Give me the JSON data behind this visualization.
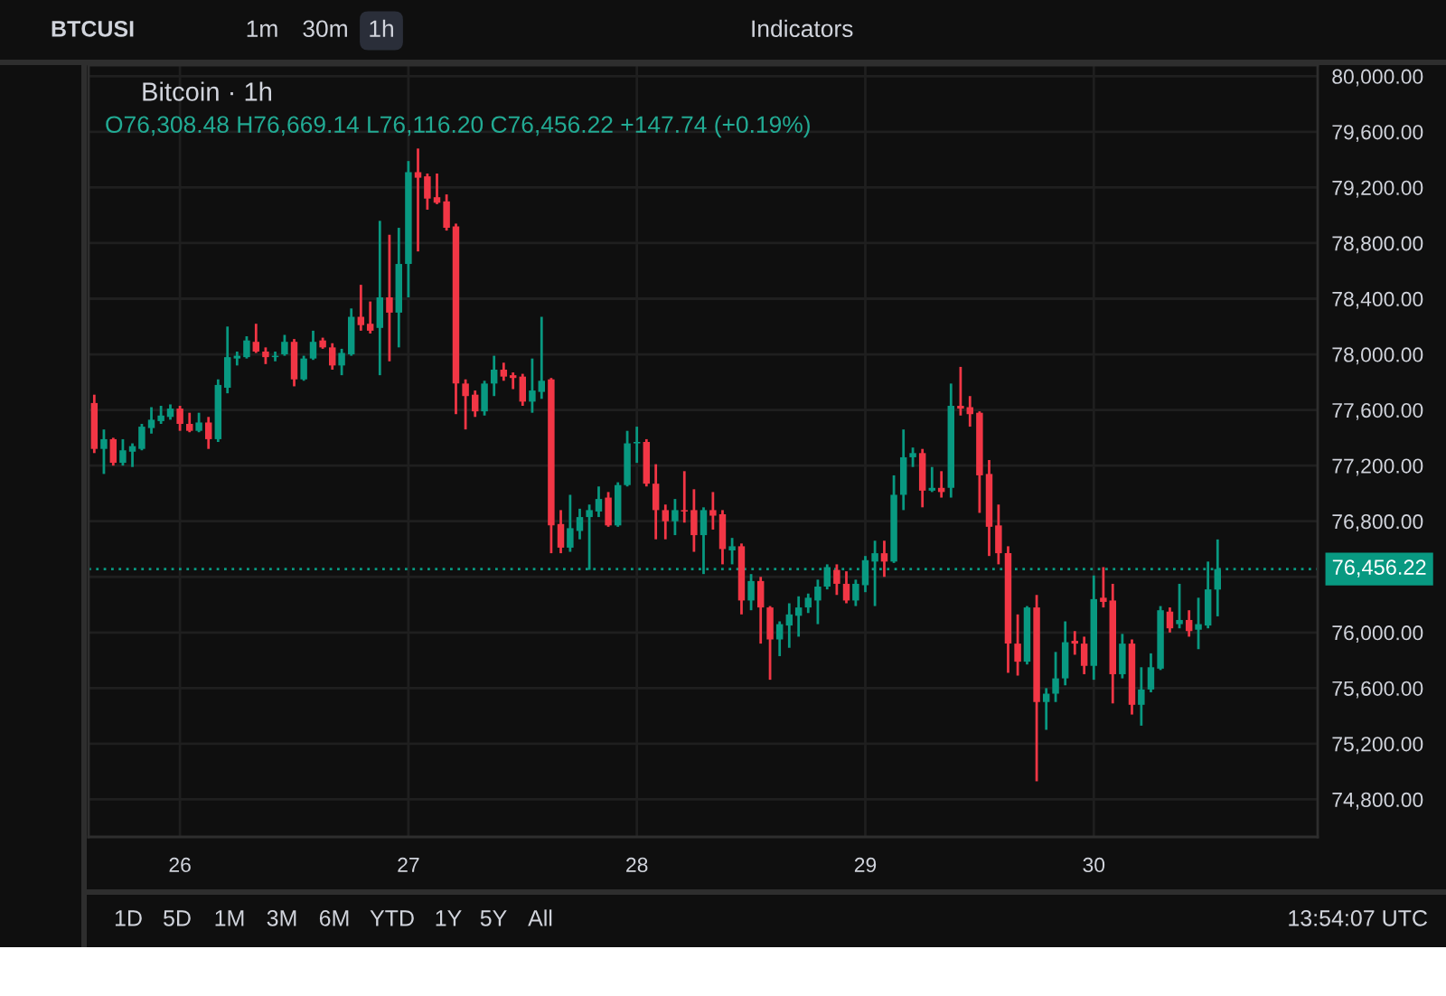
{
  "chart_data": {
    "type": "candlestick",
    "title": "Bitcoin · 1h",
    "subtitle": "O76,308.48 H76,669.14 L76,116.20 C76,456.22 +147.74 (+0.19%)",
    "annotations": [
      "BTCUSI",
      "1m",
      "30m",
      "1h",
      "Indicators",
      "1D",
      "5D",
      "1M",
      "3M",
      "6M",
      "YTD",
      "1Y",
      "5Y",
      "All",
      "13:54:07 UTC"
    ],
    "x": [
      25.625,
      25.667,
      25.708,
      25.75,
      25.792,
      25.833,
      25.875,
      25.917,
      25.958,
      26,
      26.042,
      26.083,
      26.125,
      26.167,
      26.208,
      26.25,
      26.292,
      26.333,
      26.375,
      26.417,
      26.458,
      26.5,
      26.542,
      26.583,
      26.625,
      26.667,
      26.708,
      26.75,
      26.792,
      26.833,
      26.875,
      26.917,
      26.958,
      27,
      27.042,
      27.083,
      27.125,
      27.167,
      27.208,
      27.25,
      27.292,
      27.333,
      27.375,
      27.417,
      27.458,
      27.5,
      27.542,
      27.583,
      27.625,
      27.667,
      27.708,
      27.75,
      27.792,
      27.833,
      27.875,
      27.917,
      27.958,
      28,
      28.042,
      28.083,
      28.125,
      28.167,
      28.208,
      28.25,
      28.292,
      28.333,
      28.375,
      28.417,
      28.458,
      28.5,
      28.542,
      28.583,
      28.625,
      28.667,
      28.708,
      28.75,
      28.792,
      28.833,
      28.875,
      28.917,
      28.958,
      29,
      29.042,
      29.083,
      29.125,
      29.167,
      29.208,
      29.25,
      29.292,
      29.333,
      29.375,
      29.417,
      29.458,
      29.5,
      29.542,
      29.583,
      29.625,
      29.667,
      29.708,
      29.75,
      29.792,
      29.833,
      29.875,
      29.917,
      29.958,
      30,
      30.042,
      30.083,
      30.125,
      30.167,
      30.208,
      30.25,
      30.292,
      30.333,
      30.375,
      30.417,
      30.458,
      30.5,
      30.542
    ],
    "ohlc": [
      [
        77650,
        77710,
        77290,
        77320
      ],
      [
        77320,
        77460,
        77140,
        77390
      ],
      [
        77390,
        77400,
        77200,
        77220
      ],
      [
        77220,
        77390,
        77200,
        77310
      ],
      [
        77300,
        77360,
        77190,
        77340
      ],
      [
        77320,
        77500,
        77310,
        77480
      ],
      [
        77470,
        77620,
        77430,
        77530
      ],
      [
        77520,
        77630,
        77500,
        77560
      ],
      [
        77550,
        77640,
        77530,
        77610
      ],
      [
        77610,
        77630,
        77450,
        77500
      ],
      [
        77500,
        77580,
        77440,
        77450
      ],
      [
        77450,
        77580,
        77440,
        77510
      ],
      [
        77510,
        77550,
        77320,
        77390
      ],
      [
        77390,
        77820,
        77370,
        77780
      ],
      [
        77760,
        78200,
        77720,
        77980
      ],
      [
        77970,
        78020,
        77920,
        77990
      ],
      [
        77980,
        78130,
        77970,
        78100
      ],
      [
        78090,
        78220,
        78010,
        78020
      ],
      [
        78020,
        78050,
        77930,
        77980
      ],
      [
        77980,
        78020,
        77950,
        77990
      ],
      [
        78000,
        78140,
        77990,
        78090
      ],
      [
        78090,
        78110,
        77770,
        77820
      ],
      [
        77820,
        77990,
        77810,
        77970
      ],
      [
        77970,
        78170,
        77960,
        78090
      ],
      [
        78100,
        78120,
        78040,
        78050
      ],
      [
        78050,
        78080,
        77890,
        77920
      ],
      [
        77920,
        78040,
        77850,
        78010
      ],
      [
        78000,
        78330,
        77990,
        78270
      ],
      [
        78270,
        78500,
        78170,
        78210
      ],
      [
        78220,
        78380,
        78150,
        78170
      ],
      [
        78190,
        78960,
        77850,
        78410
      ],
      [
        78410,
        78860,
        77950,
        78300
      ],
      [
        78300,
        78910,
        78050,
        78650
      ],
      [
        78650,
        79390,
        78410,
        79310
      ],
      [
        79310,
        79480,
        78740,
        79270
      ],
      [
        79280,
        79300,
        79040,
        79120
      ],
      [
        79130,
        79300,
        79080,
        79090
      ],
      [
        79100,
        79150,
        78890,
        78910
      ],
      [
        78920,
        78940,
        77570,
        77790
      ],
      [
        77790,
        77820,
        77460,
        77700
      ],
      [
        77710,
        77740,
        77550,
        77590
      ],
      [
        77590,
        77810,
        77560,
        77790
      ],
      [
        77790,
        77990,
        77700,
        77890
      ],
      [
        77890,
        77940,
        77810,
        77840
      ],
      [
        77850,
        77870,
        77750,
        77830
      ],
      [
        77840,
        77860,
        77630,
        77660
      ],
      [
        77660,
        77970,
        77580,
        77740
      ],
      [
        77730,
        78270,
        77680,
        77810
      ],
      [
        77820,
        77830,
        76570,
        76770
      ],
      [
        76780,
        76880,
        76570,
        76610
      ],
      [
        76610,
        76990,
        76580,
        76750
      ],
      [
        76730,
        76890,
        76670,
        76830
      ],
      [
        76830,
        76920,
        76450,
        76880
      ],
      [
        76870,
        77050,
        76830,
        76960
      ],
      [
        76970,
        77010,
        76760,
        76770
      ],
      [
        76770,
        77080,
        76760,
        77060
      ],
      [
        77060,
        77450,
        77050,
        77360
      ],
      [
        77360,
        77480,
        77220,
        77370
      ],
      [
        77370,
        77390,
        77050,
        77070
      ],
      [
        77070,
        77210,
        76670,
        76880
      ],
      [
        76880,
        76920,
        76670,
        76800
      ],
      [
        76800,
        76960,
        76700,
        76880
      ],
      [
        76880,
        77160,
        76790,
        76870
      ],
      [
        76880,
        77030,
        76580,
        76700
      ],
      [
        76700,
        76900,
        76420,
        76880
      ],
      [
        76880,
        77010,
        76740,
        76840
      ],
      [
        76850,
        76880,
        76490,
        76600
      ],
      [
        76590,
        76680,
        76490,
        76620
      ],
      [
        76620,
        76640,
        76130,
        76230
      ],
      [
        76230,
        76420,
        76160,
        76370
      ],
      [
        76370,
        76400,
        75920,
        76180
      ],
      [
        76180,
        76190,
        75660,
        75950
      ],
      [
        75950,
        76080,
        75830,
        76060
      ],
      [
        76050,
        76210,
        75890,
        76130
      ],
      [
        76120,
        76260,
        75970,
        76180
      ],
      [
        76180,
        76280,
        76140,
        76250
      ],
      [
        76230,
        76380,
        76060,
        76330
      ],
      [
        76330,
        76490,
        76310,
        76470
      ],
      [
        76450,
        76490,
        76270,
        76350
      ],
      [
        76350,
        76440,
        76210,
        76230
      ],
      [
        76230,
        76380,
        76190,
        76350
      ],
      [
        76340,
        76550,
        76290,
        76520
      ],
      [
        76510,
        76660,
        76190,
        76570
      ],
      [
        76570,
        76660,
        76400,
        76510
      ],
      [
        76510,
        77130,
        76500,
        76990
      ],
      [
        76990,
        77460,
        76880,
        77260
      ],
      [
        77260,
        77330,
        77190,
        77290
      ],
      [
        77290,
        77320,
        76900,
        77020
      ],
      [
        77020,
        77190,
        77010,
        77040
      ],
      [
        77040,
        77160,
        76970,
        77010
      ],
      [
        77040,
        77790,
        76970,
        77630
      ],
      [
        77630,
        77910,
        77560,
        77610
      ],
      [
        77620,
        77700,
        77480,
        77570
      ],
      [
        77580,
        77590,
        76860,
        77130
      ],
      [
        77140,
        77240,
        76550,
        76760
      ],
      [
        76770,
        76920,
        76490,
        76570
      ],
      [
        76570,
        76620,
        75710,
        75920
      ],
      [
        75920,
        76130,
        75690,
        75790
      ],
      [
        75790,
        76190,
        75770,
        76180
      ],
      [
        76180,
        76270,
        74930,
        75500
      ],
      [
        75500,
        75600,
        75300,
        75560
      ],
      [
        75560,
        75860,
        75500,
        75670
      ],
      [
        75670,
        76080,
        75620,
        75930
      ],
      [
        75940,
        76010,
        75840,
        75920
      ],
      [
        75920,
        75970,
        75700,
        75760
      ],
      [
        75760,
        76410,
        75660,
        76240
      ],
      [
        76250,
        76470,
        76180,
        76220
      ],
      [
        76230,
        76350,
        75490,
        75700
      ],
      [
        75700,
        75990,
        75670,
        75920
      ],
      [
        75920,
        75950,
        75410,
        75480
      ],
      [
        75480,
        75750,
        75330,
        75590
      ],
      [
        75590,
        75850,
        75570,
        75750
      ],
      [
        75740,
        76190,
        75730,
        76160
      ],
      [
        76150,
        76180,
        76000,
        76030
      ],
      [
        76060,
        76350,
        76030,
        76090
      ],
      [
        76090,
        76160,
        75970,
        76010
      ],
      [
        76020,
        76250,
        75880,
        76060
      ],
      [
        76050,
        76510,
        76030,
        76310
      ],
      [
        76308.48,
        76669.14,
        76116.2,
        76456.22
      ]
    ],
    "colors": [
      "#f23645",
      "#089981",
      "#f23645",
      "#089981",
      "#089981",
      "#089981",
      "#089981",
      "#089981",
      "#089981",
      "#f23645",
      "#f23645",
      "#089981",
      "#f23645",
      "#089981",
      "#089981",
      "#089981",
      "#089981",
      "#f23645",
      "#f23645",
      "#089981",
      "#089981",
      "#f23645",
      "#089981",
      "#089981",
      "#f23645",
      "#f23645",
      "#089981",
      "#089981",
      "#f23645",
      "#f23645",
      "#089981",
      "#f23645",
      "#089981",
      "#089981",
      "#f23645",
      "#f23645",
      "#f23645",
      "#f23645",
      "#f23645",
      "#f23645",
      "#f23645",
      "#089981",
      "#089981",
      "#f23645",
      "#f23645",
      "#f23645",
      "#089981",
      "#089981",
      "#f23645",
      "#f23645",
      "#089981",
      "#089981",
      "#089981",
      "#089981",
      "#f23645",
      "#089981",
      "#089981",
      "#089981",
      "#f23645",
      "#f23645",
      "#f23645",
      "#089981",
      "#f23645",
      "#f23645",
      "#089981",
      "#f23645",
      "#f23645",
      "#089981",
      "#f23645",
      "#089981",
      "#f23645",
      "#f23645",
      "#089981",
      "#089981",
      "#089981",
      "#089981",
      "#089981",
      "#089981",
      "#f23645",
      "#f23645",
      "#089981",
      "#089981",
      "#089981",
      "#f23645",
      "#089981",
      "#089981",
      "#089981",
      "#f23645",
      "#089981",
      "#f23645",
      "#089981",
      "#f23645",
      "#f23645",
      "#f23645",
      "#f23645",
      "#f23645",
      "#f23645",
      "#f23645",
      "#089981",
      "#f23645",
      "#089981",
      "#089981",
      "#089981",
      "#f23645",
      "#f23645",
      "#089981",
      "#f23645",
      "#f23645",
      "#089981",
      "#f23645",
      "#089981",
      "#089981",
      "#089981",
      "#f23645",
      "#089981",
      "#f23645",
      "#089981",
      "#089981",
      "#089981"
    ],
    "xlim": [
      25.6,
      30.98
    ],
    "xticks": [
      26,
      27,
      28,
      29,
      30
    ],
    "ylim": [
      74530,
      80080
    ],
    "yticks": [
      {
        "value": 74800,
        "label": "74,800.00"
      },
      {
        "value": 75200,
        "label": "75,200.00"
      },
      {
        "value": 75600,
        "label": "75,600.00"
      },
      {
        "value": 76000,
        "label": "76,000.00"
      },
      {
        "value": 76400,
        "label": null
      },
      {
        "value": 76800,
        "label": "76,800.00"
      },
      {
        "value": 77200,
        "label": "77,200.00"
      },
      {
        "value": 77600,
        "label": "77,600.00"
      },
      {
        "value": 78000,
        "label": "78,000.00"
      },
      {
        "value": 78400,
        "label": "78,400.00"
      },
      {
        "value": 78800,
        "label": "78,800.00"
      },
      {
        "value": 79200,
        "label": "79,200.00"
      },
      {
        "value": 79600,
        "label": "79,600.00"
      },
      {
        "value": 80000,
        "label": "80,000.00"
      }
    ],
    "grid": true,
    "ref_lines": [
      {
        "axis": "y",
        "value": 76456.22,
        "label": "76,456.22",
        "color": "#089981",
        "line_style": "dotted"
      }
    ]
  }
}
